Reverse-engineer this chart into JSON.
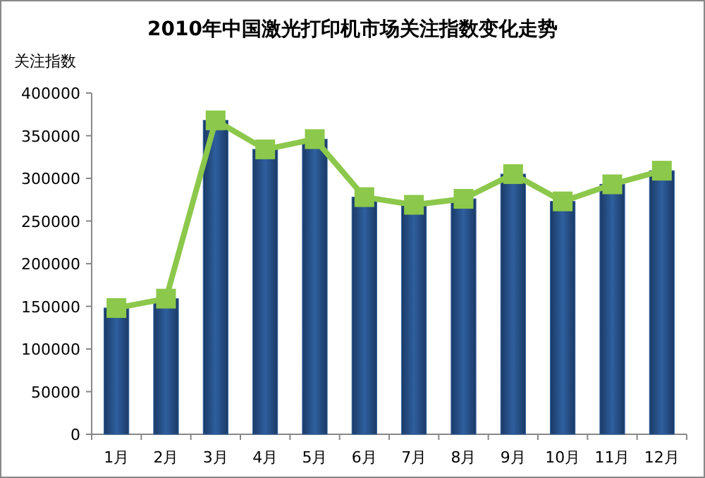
{
  "chart_data": {
    "type": "bar",
    "title": "2010年中国激光打印机市场关注指数变化走势",
    "ylabel": "关注指数",
    "categories": [
      "1月",
      "2月",
      "3月",
      "4月",
      "5月",
      "6月",
      "7月",
      "8月",
      "9月",
      "10月",
      "11月",
      "12月"
    ],
    "series": [
      {
        "color": "#2e5f9e",
        "values": [
          148000,
          159000,
          368000,
          334000,
          346000,
          278000,
          269000,
          276000,
          305000,
          273000,
          293000,
          309000
        ]
      },
      {
        "type": "line",
        "color": "#8cc84b",
        "marker": "square",
        "values": [
          148000,
          159000,
          368000,
          334000,
          346000,
          278000,
          269000,
          276000,
          305000,
          273000,
          293000,
          309000
        ]
      }
    ],
    "ylim": [
      0,
      400000
    ],
    "yticks": [
      0,
      50000,
      100000,
      150000,
      200000,
      250000,
      300000,
      350000,
      400000
    ],
    "grid": false
  }
}
